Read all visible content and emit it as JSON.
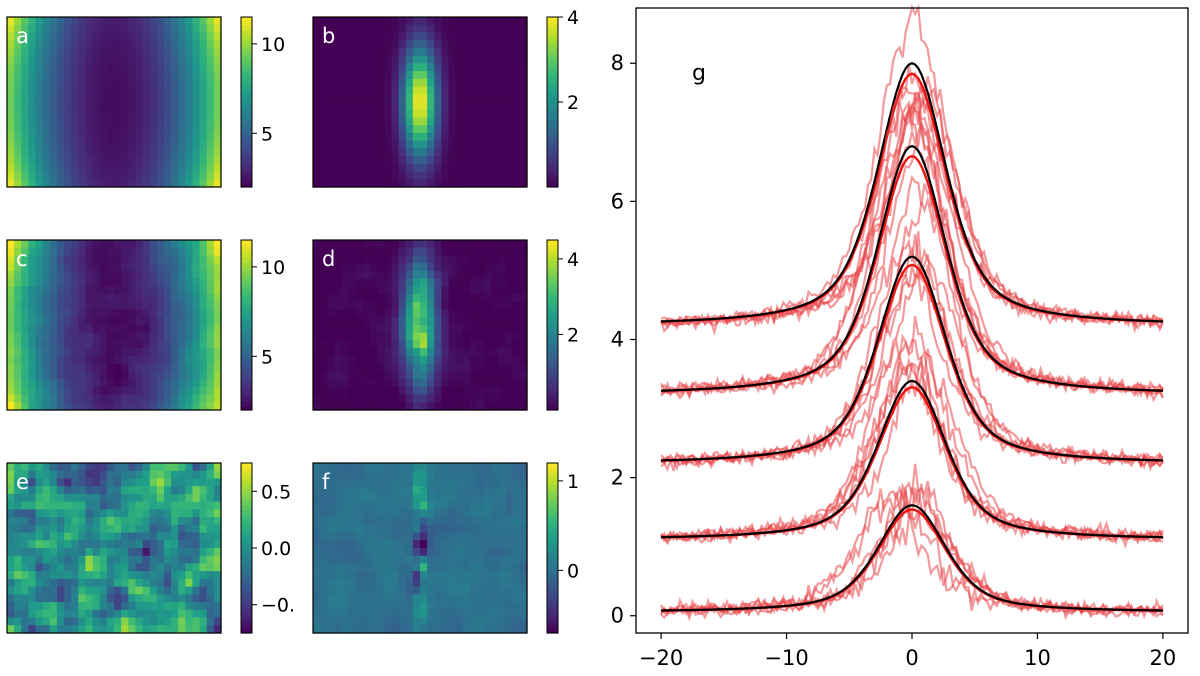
{
  "colors": {
    "viridis": [
      "#440154",
      "#482878",
      "#3e4989",
      "#31688e",
      "#26828e",
      "#1f9e89",
      "#35b779",
      "#6ece58",
      "#b5de2b",
      "#fde725"
    ],
    "model_line": "#000000",
    "sample_line": "#e8474a",
    "fit_line": "#ee1111"
  },
  "chart_data": [
    {
      "type": "heatmap",
      "panel": "a",
      "label": "a",
      "description": "smooth model map: low (dark) vertical band in the centre, rising towards the edges",
      "colorbar": {
        "range": [
          2,
          11.5
        ],
        "ticks": [
          {
            "value": 5,
            "label": "5"
          },
          {
            "value": 10,
            "label": "10"
          }
        ]
      }
    },
    {
      "type": "heatmap",
      "panel": "b",
      "label": "b",
      "description": "smooth model map: bright narrow vertical ellipse in the centre on a dark background",
      "colorbar": {
        "range": [
          0,
          4
        ],
        "ticks": [
          {
            "value": 2,
            "label": "2"
          },
          {
            "value": 4,
            "label": "4"
          }
        ]
      }
    },
    {
      "type": "heatmap",
      "panel": "c",
      "label": "c",
      "description": "noisy version of panel a",
      "colorbar": {
        "range": [
          2,
          11.5
        ],
        "ticks": [
          {
            "value": 5,
            "label": "5"
          },
          {
            "value": 10,
            "label": "10"
          }
        ]
      }
    },
    {
      "type": "heatmap",
      "panel": "d",
      "label": "d",
      "description": "noisy clumpy version of panel b",
      "colorbar": {
        "range": [
          0,
          4.5
        ],
        "ticks": [
          {
            "value": 2,
            "label": "2"
          },
          {
            "value": 4,
            "label": "4"
          }
        ]
      }
    },
    {
      "type": "heatmap",
      "panel": "e",
      "label": "e",
      "description": "residual noise field (c minus a)",
      "colorbar": {
        "range": [
          -0.75,
          0.75
        ],
        "ticks": [
          {
            "value": 0.5,
            "label": "0.5"
          },
          {
            "value": 0.0,
            "label": "0.0"
          },
          {
            "value": -0.5,
            "label": "−0."
          }
        ]
      }
    },
    {
      "type": "heatmap",
      "panel": "f",
      "label": "f",
      "description": "residual (d minus b): clumpy central vertical streak",
      "colorbar": {
        "range": [
          -0.7,
          1.2
        ],
        "ticks": [
          {
            "value": 1,
            "label": "1"
          },
          {
            "value": 0,
            "label": "0"
          }
        ]
      }
    },
    {
      "type": "line",
      "panel": "g",
      "label": "g",
      "description": "five stacked line profiles; black = model, red = noisy samples",
      "x_range": [
        -20,
        20
      ],
      "xlim": [
        -22,
        22
      ],
      "ylim": [
        -0.25,
        8.8
      ],
      "x_ticks": [
        -20,
        -10,
        0,
        10,
        20
      ],
      "x_tick_labels": [
        "−20",
        "−10",
        "0",
        "10",
        "20"
      ],
      "y_ticks": [
        0,
        2,
        4,
        6,
        8
      ],
      "y_tick_labels": [
        "0",
        "2",
        "4",
        "6",
        "8"
      ],
      "model_profiles": [
        {
          "offset": 4.2,
          "peak": 8.0
        },
        {
          "offset": 3.2,
          "peak": 6.8
        },
        {
          "offset": 2.2,
          "peak": 5.2
        },
        {
          "offset": 1.1,
          "peak": 3.4
        },
        {
          "offset": 0.05,
          "peak": 1.6
        }
      ],
      "samples_per_profile": 6
    }
  ]
}
